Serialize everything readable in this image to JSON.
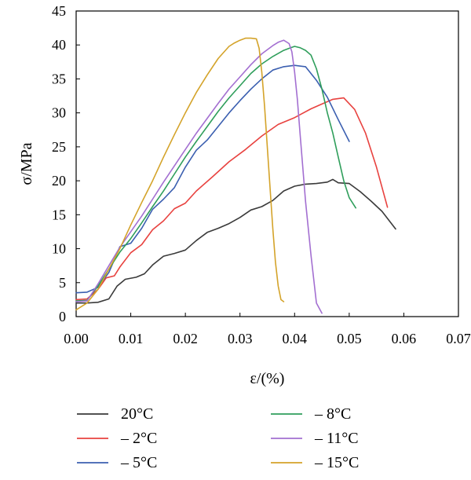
{
  "chart_data": {
    "type": "line",
    "title": "",
    "xlabel": "ε/(%)",
    "ylabel": "σ/MPa",
    "xlim": [
      0,
      0.07
    ],
    "ylim": [
      0,
      45
    ],
    "xticks": [
      "0.00",
      "0.01",
      "0.02",
      "0.03",
      "0.04",
      "0.05",
      "0.06",
      "0.07"
    ],
    "yticks": [
      "0",
      "5",
      "10",
      "15",
      "20",
      "25",
      "30",
      "35",
      "40",
      "45"
    ],
    "grid": false,
    "legend_position": "bottom",
    "series": [
      {
        "name": "20°C",
        "color": "#3a3a3a",
        "x": [
          0.0,
          0.002,
          0.004,
          0.006,
          0.0075,
          0.009,
          0.011,
          0.0125,
          0.014,
          0.016,
          0.018,
          0.02,
          0.022,
          0.024,
          0.026,
          0.028,
          0.03,
          0.032,
          0.034,
          0.036,
          0.038,
          0.04,
          0.042,
          0.044,
          0.046,
          0.047,
          0.048,
          0.05,
          0.052,
          0.054,
          0.056,
          0.0585
        ],
        "y": [
          2.0,
          2.0,
          2.1,
          2.6,
          4.5,
          5.5,
          5.8,
          6.3,
          7.6,
          8.9,
          9.3,
          9.8,
          11.2,
          12.4,
          13.0,
          13.7,
          14.6,
          15.7,
          16.2,
          17.1,
          18.5,
          19.2,
          19.5,
          19.6,
          19.8,
          20.2,
          19.7,
          19.6,
          18.4,
          17.0,
          15.5,
          12.9
        ]
      },
      {
        "name": "– 2°C",
        "color": "#e8423f",
        "x": [
          0.0,
          0.002,
          0.004,
          0.0055,
          0.007,
          0.008,
          0.01,
          0.012,
          0.014,
          0.016,
          0.018,
          0.02,
          0.022,
          0.025,
          0.028,
          0.031,
          0.034,
          0.037,
          0.04,
          0.043,
          0.045,
          0.047,
          0.049,
          0.051,
          0.053,
          0.055,
          0.057
        ],
        "y": [
          2.5,
          2.6,
          4.0,
          5.7,
          6.0,
          7.3,
          9.4,
          10.6,
          12.8,
          14.1,
          15.9,
          16.7,
          18.5,
          20.6,
          22.8,
          24.6,
          26.6,
          28.3,
          29.3,
          30.6,
          31.3,
          32.0,
          32.2,
          30.5,
          27.0,
          22.0,
          16.1
        ]
      },
      {
        "name": "– 5°C",
        "color": "#3b5fb0",
        "x": [
          0.0,
          0.002,
          0.004,
          0.006,
          0.008,
          0.01,
          0.012,
          0.014,
          0.016,
          0.018,
          0.02,
          0.022,
          0.024,
          0.026,
          0.028,
          0.03,
          0.032,
          0.034,
          0.036,
          0.038,
          0.04,
          0.042,
          0.044,
          0.046,
          0.048,
          0.05
        ],
        "y": [
          3.5,
          3.6,
          4.3,
          6.5,
          10.3,
          10.8,
          13.0,
          15.8,
          17.3,
          19.0,
          22.0,
          24.5,
          26.0,
          28.0,
          30.0,
          31.8,
          33.5,
          35.0,
          36.3,
          36.8,
          37.0,
          36.8,
          34.8,
          32.3,
          29.0,
          25.8
        ]
      },
      {
        "name": "– 8°C",
        "color": "#2f9e5b",
        "x": [
          0.0,
          0.002,
          0.004,
          0.006,
          0.008,
          0.01,
          0.012,
          0.014,
          0.016,
          0.018,
          0.02,
          0.022,
          0.024,
          0.026,
          0.028,
          0.03,
          0.032,
          0.034,
          0.036,
          0.038,
          0.039,
          0.04,
          0.041,
          0.042,
          0.043,
          0.044,
          0.045,
          0.046,
          0.047,
          0.048,
          0.049,
          0.05,
          0.0512
        ],
        "y": [
          2.3,
          2.4,
          4.5,
          7.0,
          9.5,
          11.5,
          13.8,
          16.2,
          18.5,
          21.0,
          23.5,
          25.8,
          28.0,
          30.2,
          32.2,
          34.0,
          35.8,
          37.2,
          38.3,
          39.2,
          39.5,
          39.8,
          39.6,
          39.2,
          38.5,
          36.5,
          33.5,
          30.0,
          27.0,
          23.5,
          20.0,
          17.5,
          16.0
        ]
      },
      {
        "name": "– 11°C",
        "color": "#a36fd1",
        "x": [
          0.0,
          0.002,
          0.004,
          0.006,
          0.008,
          0.01,
          0.012,
          0.014,
          0.016,
          0.018,
          0.02,
          0.022,
          0.024,
          0.026,
          0.028,
          0.03,
          0.032,
          0.034,
          0.036,
          0.037,
          0.038,
          0.039,
          0.0395,
          0.04,
          0.0405,
          0.041,
          0.0415,
          0.042,
          0.043,
          0.044,
          0.045
        ],
        "y": [
          2.2,
          2.3,
          4.8,
          7.5,
          10.2,
          12.5,
          14.8,
          17.3,
          19.8,
          22.2,
          24.6,
          27.0,
          29.2,
          31.4,
          33.5,
          35.3,
          37.1,
          38.7,
          39.9,
          40.4,
          40.7,
          40.2,
          39.0,
          36.0,
          32.0,
          27.0,
          22.0,
          17.0,
          9.0,
          2.0,
          0.5
        ]
      },
      {
        "name": "– 15°C",
        "color": "#d4a32a",
        "x": [
          0.0,
          0.002,
          0.004,
          0.006,
          0.008,
          0.01,
          0.012,
          0.014,
          0.016,
          0.018,
          0.02,
          0.022,
          0.024,
          0.026,
          0.028,
          0.029,
          0.03,
          0.031,
          0.032,
          0.033,
          0.0335,
          0.034,
          0.0345,
          0.035,
          0.0355,
          0.036,
          0.0365,
          0.037,
          0.0375,
          0.038
        ],
        "y": [
          1.0,
          2.0,
          4.0,
          7.0,
          10.0,
          13.5,
          16.8,
          20.0,
          23.5,
          26.8,
          30.0,
          33.0,
          35.6,
          38.0,
          39.8,
          40.3,
          40.7,
          41.0,
          41.0,
          40.9,
          39.5,
          36.0,
          31.0,
          25.0,
          19.0,
          13.0,
          8.0,
          4.5,
          2.5,
          2.2
        ]
      }
    ]
  }
}
